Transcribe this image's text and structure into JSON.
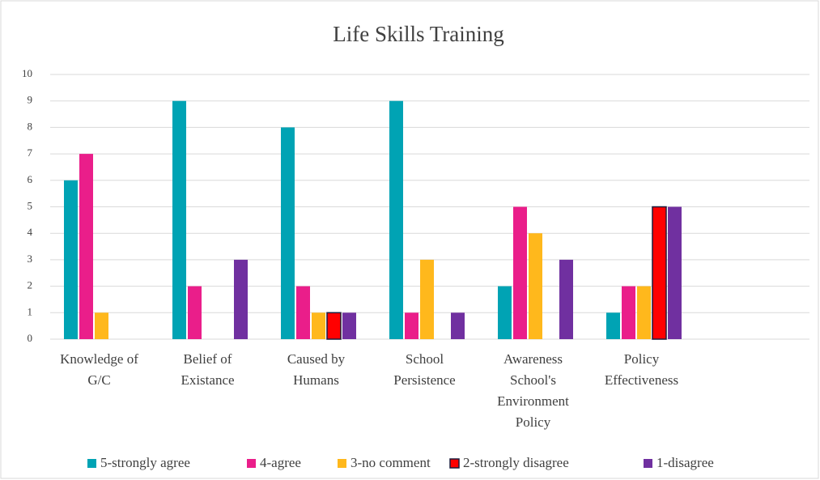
{
  "chart_data": {
    "type": "bar",
    "title": "Life Skills Training",
    "categories": [
      "Knowledge of G/C",
      "Belief of Existance",
      "Caused by Humans",
      "School Persistence",
      "Awareness School's Environment Policy",
      "Policy Effectiveness",
      null
    ],
    "series": [
      {
        "name": "5-strongly agree",
        "color": "#00a3b4",
        "values": [
          6,
          9,
          8,
          9,
          2,
          1,
          null
        ]
      },
      {
        "name": "4-agree",
        "color": "#ea1e8a",
        "values": [
          7,
          2,
          2,
          1,
          5,
          2,
          null
        ]
      },
      {
        "name": "3-no comment",
        "color": "#ffb81c",
        "values": [
          1,
          0,
          1,
          3,
          4,
          2,
          null
        ]
      },
      {
        "name": "2-strongly disagree",
        "color": "#ff0000",
        "stroke": "#1c1c3c",
        "values": [
          0,
          0,
          1,
          0,
          0,
          5,
          null
        ]
      },
      {
        "name": "1-disagree",
        "color": "#7030a0",
        "values": [
          0,
          3,
          1,
          1,
          3,
          5,
          null
        ]
      }
    ],
    "ylim": [
      0,
      10
    ],
    "yticks": [
      0,
      1,
      2,
      3,
      4,
      5,
      6,
      7,
      8,
      9,
      10
    ],
    "grid": true,
    "legend": "bottom"
  }
}
